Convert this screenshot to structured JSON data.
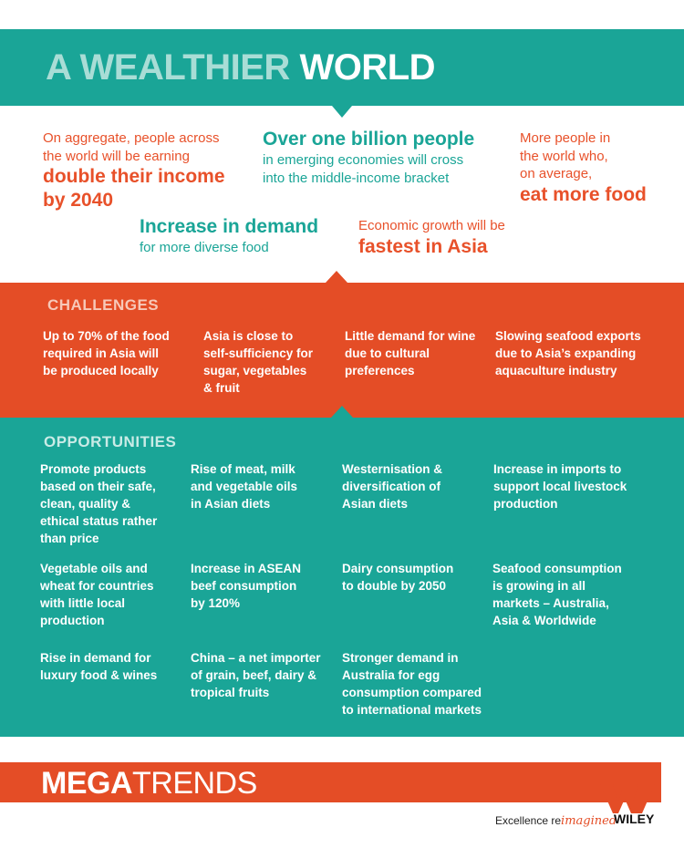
{
  "header": {
    "title_part1": "A WEALTHIER",
    "title_part2": "WORLD"
  },
  "highlights": {
    "h1_line1": "On aggregate, people across",
    "h1_line2": "the world will be earning",
    "h1_big1": "double their income",
    "h1_big2": "by 2040",
    "h2_big": "Over one billion people",
    "h2_line1": "in emerging economies will cross",
    "h2_line2": "into the middle-income bracket",
    "h3_line1": "More people in",
    "h3_line2": "the world who,",
    "h3_line3": "on average,",
    "h3_big": "eat more food",
    "h4_big": "Increase in demand",
    "h4_line1": "for more diverse food",
    "h5_line1": "Economic growth will be",
    "h5_big": "fastest in Asia"
  },
  "challenges": {
    "heading": "CHALLENGES",
    "items": [
      "Up to 70% of the food\nrequired in Asia will\nbe produced locally",
      "Asia is close to\nself-sufficiency for\nsugar, vegetables\n& fruit",
      "Little demand for wine\ndue to cultural\npreferences",
      "Slowing seafood exports\ndue to Asia’s expanding\naquaculture industry"
    ]
  },
  "opportunities": {
    "heading": "OPPORTUNITIES",
    "items": [
      "Promote products\nbased on their safe,\nclean, quality &\nethical status rather\nthan price",
      "Rise of meat, milk\nand vegetable oils\nin Asian diets",
      "Westernisation &\ndiversification of\nAsian diets",
      "Increase in imports to\nsupport local livestock\nproduction",
      "Vegetable oils and\nwheat for countries\nwith little local\nproduction",
      "Increase in ASEAN\nbeef consumption\nby 120%",
      "Dairy consumption\nto double by 2050",
      "Seafood consumption\nis growing in all\nmarkets – Australia,\nAsia & Worldwide",
      "Rise in demand for\nluxury food & wines",
      "China – a net importer\nof grain, beef, dairy &\ntropical fruits",
      "Stronger demand in\nAustralia for egg\nconsumption compared\nto international markets"
    ]
  },
  "footer": {
    "brand_bold": "MEGA",
    "brand_light": "TRENDS",
    "tagline_pre": "Excellence re",
    "tagline_script": "imagined",
    "wiley": "WILEY"
  },
  "colors": {
    "teal": "#1aa597",
    "orange": "#e44d26"
  }
}
